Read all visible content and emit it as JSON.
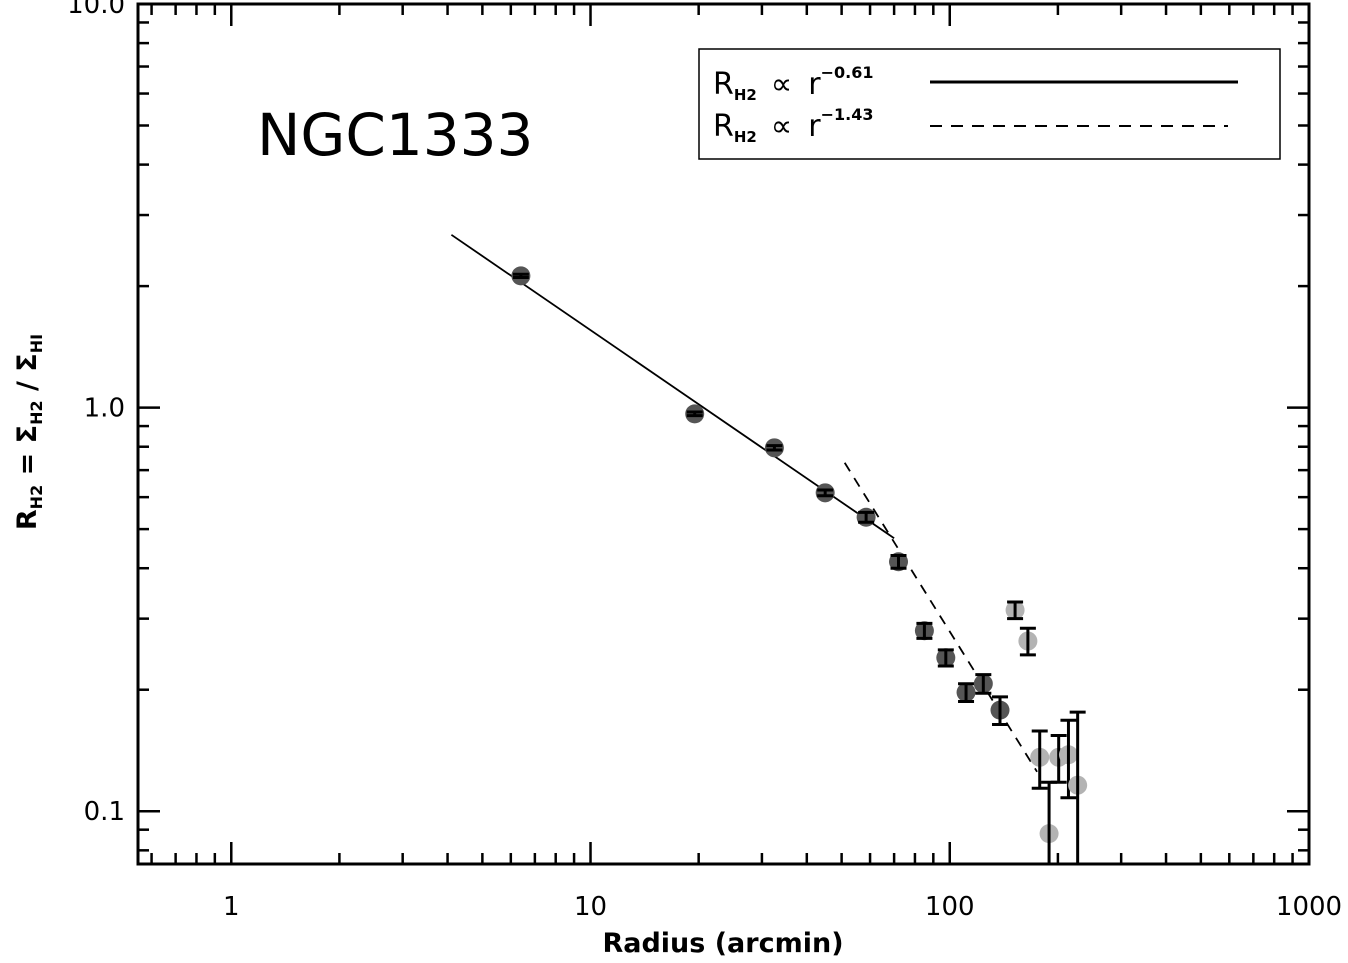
{
  "chart_data": {
    "type": "scatter",
    "title": "",
    "annotation": "NGC1333",
    "xlabel": "Radius (arcmin)",
    "ylabel": {
      "R": "R",
      "R_sub": "H2",
      "eq": " = ",
      "num": "Σ",
      "num_sub": "H2",
      "slash": " / ",
      "den": "Σ",
      "den_sub": "HI"
    },
    "xscale": "log",
    "yscale": "log",
    "xlim": [
      0.55,
      1000
    ],
    "ylim": [
      0.074,
      10
    ],
    "xticks": [
      {
        "value": 1,
        "label": "1"
      },
      {
        "value": 10,
        "label": "10"
      },
      {
        "value": 100,
        "label": "100"
      },
      {
        "value": 1000,
        "label": "1000"
      }
    ],
    "yticks": [
      {
        "value": 0.1,
        "label": "0.1"
      },
      {
        "value": 1,
        "label": "1.0"
      },
      {
        "value": 10,
        "label": "10.0"
      }
    ],
    "grid": false,
    "legend": {
      "position": "top-right",
      "entries": [
        {
          "R": "R",
          "sub": "H2",
          "prop": "∝",
          "r": "r",
          "exp": "−0.61",
          "style": "solid"
        },
        {
          "R": "R",
          "sub": "H2",
          "prop": "∝",
          "r": "r",
          "exp": "−1.43",
          "style": "dashed"
        }
      ]
    },
    "fits": [
      {
        "name": "slope -0.61",
        "style": "solid",
        "slope": -0.61,
        "x": [
          4.1,
          70
        ],
        "y_at_x0": 2.68
      },
      {
        "name": "slope -1.43",
        "style": "dashed",
        "slope": -1.43,
        "x": [
          51,
          175
        ],
        "y_at_x0": 0.73
      }
    ],
    "points": [
      {
        "x": 6.4,
        "y": 2.12,
        "err": 0.02,
        "shade": "dark"
      },
      {
        "x": 19.5,
        "y": 0.965,
        "err": 0.01,
        "shade": "dark"
      },
      {
        "x": 32.5,
        "y": 0.795,
        "err": 0.01,
        "shade": "dark"
      },
      {
        "x": 45,
        "y": 0.615,
        "err": 0.01,
        "shade": "dark"
      },
      {
        "x": 58.5,
        "y": 0.535,
        "err": 0.015,
        "shade": "dark"
      },
      {
        "x": 72,
        "y": 0.415,
        "err": 0.015,
        "shade": "dark"
      },
      {
        "x": 85,
        "y": 0.28,
        "err": 0.012,
        "shade": "dark"
      },
      {
        "x": 97.5,
        "y": 0.24,
        "err": 0.011,
        "shade": "dark"
      },
      {
        "x": 111,
        "y": 0.197,
        "err": 0.01,
        "shade": "dark"
      },
      {
        "x": 124,
        "y": 0.207,
        "err": 0.011,
        "shade": "dark"
      },
      {
        "x": 138,
        "y": 0.178,
        "err": 0.014,
        "shade": "dark"
      },
      {
        "x": 152,
        "y": 0.315,
        "err": 0.015,
        "shade": "light"
      },
      {
        "x": 165,
        "y": 0.264,
        "err": 0.02,
        "shade": "light"
      },
      {
        "x": 178,
        "y": 0.136,
        "err": 0.022,
        "shade": "light"
      },
      {
        "x": 189,
        "y": 0.088,
        "err": 0.03,
        "shade": "light"
      },
      {
        "x": 201,
        "y": 0.136,
        "err": 0.018,
        "shade": "light"
      },
      {
        "x": 214,
        "y": 0.138,
        "err": 0.03,
        "shade": "light"
      },
      {
        "x": 227,
        "y": 0.116,
        "err": 0.06,
        "shade": "light"
      }
    ],
    "colors": {
      "dark_point": "#555555",
      "light_point": "#b3b3b3",
      "line": "#000000",
      "background": "#ffffff"
    }
  }
}
